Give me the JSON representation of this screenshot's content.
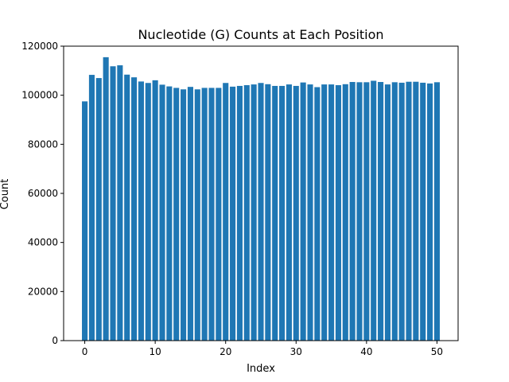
{
  "chart_data": {
    "type": "bar",
    "title": "Nucleotide (G) Counts at Each Position",
    "xlabel": "Index",
    "ylabel": "Count",
    "xlim": [
      -3,
      53
    ],
    "ylim": [
      0,
      120000
    ],
    "xticks": [
      0,
      10,
      20,
      30,
      40,
      50
    ],
    "yticks": [
      0,
      20000,
      40000,
      60000,
      80000,
      100000,
      120000
    ],
    "x": [
      0,
      1,
      2,
      3,
      4,
      5,
      6,
      7,
      8,
      9,
      10,
      11,
      12,
      13,
      14,
      15,
      16,
      17,
      18,
      19,
      20,
      21,
      22,
      23,
      24,
      25,
      26,
      27,
      28,
      29,
      30,
      31,
      32,
      33,
      34,
      35,
      36,
      37,
      38,
      39,
      40,
      41,
      42,
      43,
      44,
      45,
      46,
      47,
      48,
      49,
      50
    ],
    "values": [
      97500,
      108300,
      107000,
      115500,
      111800,
      112200,
      108400,
      107300,
      105600,
      105000,
      106100,
      104300,
      103600,
      103000,
      102400,
      103400,
      102400,
      103000,
      103000,
      103000,
      105000,
      103500,
      103800,
      104100,
      104400,
      105000,
      104500,
      103800,
      103800,
      104400,
      103800,
      105200,
      104400,
      103300,
      104400,
      104400,
      104100,
      104500,
      105400,
      105300,
      105300,
      105900,
      105400,
      104400,
      105300,
      105100,
      105500,
      105500,
      105100,
      104800,
      105300
    ],
    "bar_color": "#1f77b4",
    "grid": false,
    "legend": "none"
  }
}
